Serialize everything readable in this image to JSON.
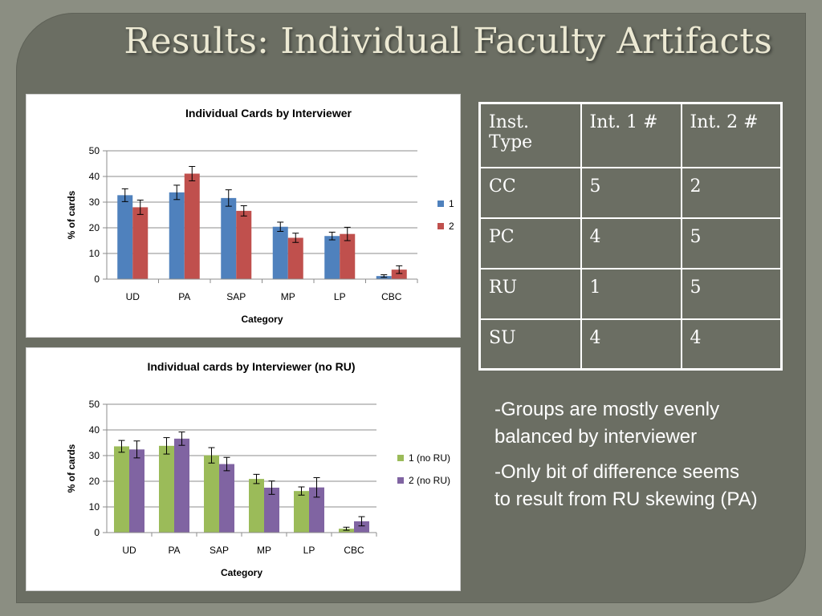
{
  "slide": {
    "title": "Results: Individual Faculty Artifacts"
  },
  "chart_data": [
    {
      "type": "bar",
      "title": "Individual Cards by Interviewer",
      "xlabel": "Category",
      "ylabel": "% of cards",
      "categories": [
        "UD",
        "PA",
        "SAP",
        "MP",
        "LP",
        "CBC"
      ],
      "ylim": [
        0,
        50
      ],
      "yticks": [
        0,
        10,
        20,
        30,
        40,
        50
      ],
      "grid": true,
      "legend": "right",
      "series": [
        {
          "name": "1",
          "color": "#4f81bd",
          "values": [
            32.7,
            33.8,
            31.6,
            20.4,
            16.8,
            1.2
          ],
          "errors": [
            2.5,
            2.8,
            3.2,
            1.8,
            1.5,
            0.5
          ]
        },
        {
          "name": "2",
          "color": "#c0504d",
          "values": [
            28.0,
            41.1,
            26.6,
            16.1,
            17.6,
            3.7
          ],
          "errors": [
            2.8,
            2.8,
            2.0,
            1.8,
            2.6,
            1.5
          ]
        }
      ]
    },
    {
      "type": "bar",
      "title": "Individual cards by Interviewer (no RU)",
      "xlabel": "Category",
      "ylabel": "% of cards",
      "categories": [
        "UD",
        "PA",
        "SAP",
        "MP",
        "LP",
        "CBC"
      ],
      "ylim": [
        0,
        50
      ],
      "yticks": [
        0,
        10,
        20,
        30,
        40,
        50
      ],
      "grid": true,
      "legend": "right",
      "series": [
        {
          "name": "1 (no RU)",
          "color": "#9bbb59",
          "values": [
            33.6,
            33.8,
            30.1,
            20.9,
            16.2,
            1.5
          ],
          "errors": [
            2.3,
            3.2,
            3.0,
            1.8,
            1.6,
            0.6
          ]
        },
        {
          "name": "2 (no RU)",
          "color": "#8064a2",
          "values": [
            32.4,
            36.6,
            26.7,
            17.5,
            17.6,
            4.4
          ],
          "errors": [
            3.3,
            2.6,
            2.6,
            2.6,
            3.8,
            1.8
          ]
        }
      ]
    }
  ],
  "table": {
    "header": [
      "Inst. Type",
      "Int. 1 #",
      "Int. 2 #"
    ],
    "rows": [
      [
        "CC",
        "5",
        "2"
      ],
      [
        "PC",
        "4",
        "5"
      ],
      [
        "RU",
        "1",
        "5"
      ],
      [
        "SU",
        "4",
        "4"
      ]
    ]
  },
  "notes": [
    "-Groups are mostly evenly balanced by interviewer",
    "-Only bit of difference seems to result from RU skewing (PA)"
  ]
}
